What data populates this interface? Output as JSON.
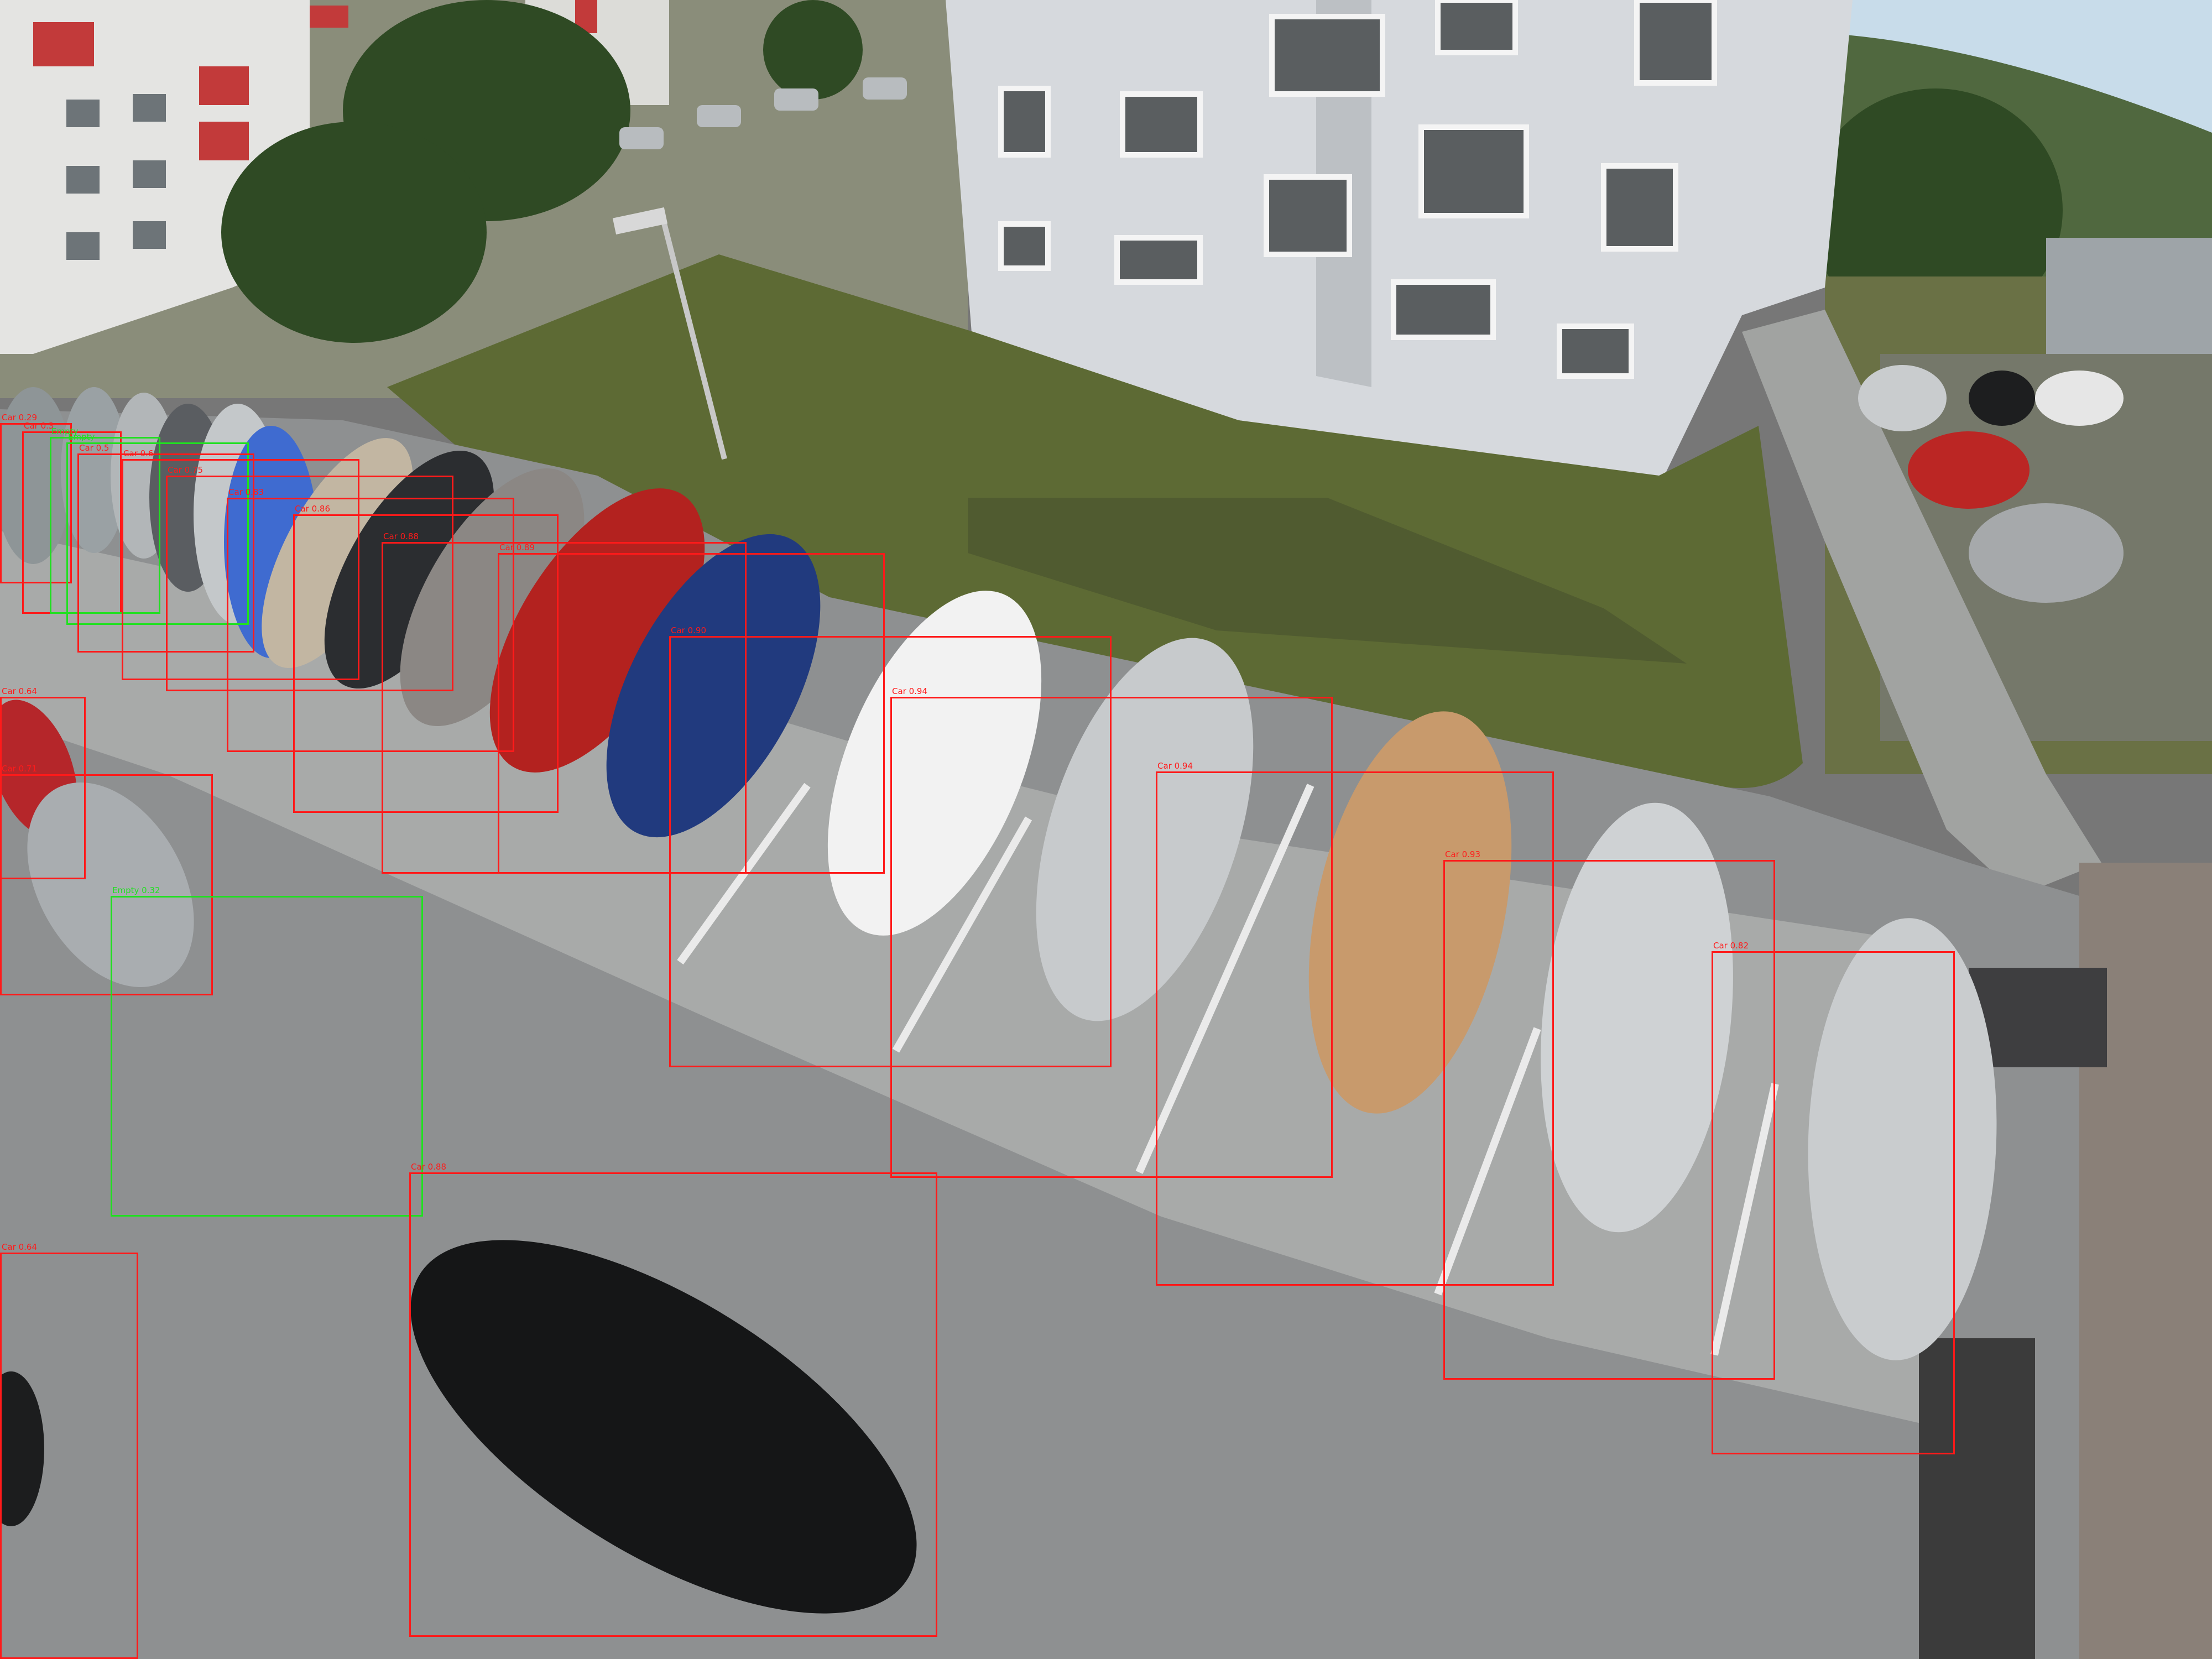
{
  "colors": {
    "car": "#ff1a1a",
    "empty": "#20e020"
  },
  "detections": [
    {
      "label": "Car 0.29",
      "cls": "car"
    },
    {
      "label": "Car 0.3",
      "cls": "car"
    },
    {
      "label": "Empty",
      "cls": "empty"
    },
    {
      "label": "Empty",
      "cls": "empty"
    },
    {
      "label": "Car 0.5",
      "cls": "car"
    },
    {
      "label": "Car 0.6",
      "cls": "car"
    },
    {
      "label": "Car 0.75",
      "cls": "car"
    },
    {
      "label": "Car 0.83",
      "cls": "car"
    },
    {
      "label": "Car 0.86",
      "cls": "car"
    },
    {
      "label": "Car 0.88",
      "cls": "car"
    },
    {
      "label": "Car 0.89",
      "cls": "car"
    },
    {
      "label": "Car 0.90",
      "cls": "car"
    },
    {
      "label": "Car 0.94",
      "cls": "car"
    },
    {
      "label": "Car 0.94",
      "cls": "car"
    },
    {
      "label": "Car 0.93",
      "cls": "car"
    },
    {
      "label": "Car 0.82",
      "cls": "car"
    },
    {
      "label": "Car 0.64",
      "cls": "car"
    },
    {
      "label": "Car 0.71",
      "cls": "car"
    },
    {
      "label": "Empty 0.32",
      "cls": "empty"
    },
    {
      "label": "Car 0.88",
      "cls": "car"
    },
    {
      "label": "Car 0.64",
      "cls": "car"
    }
  ]
}
